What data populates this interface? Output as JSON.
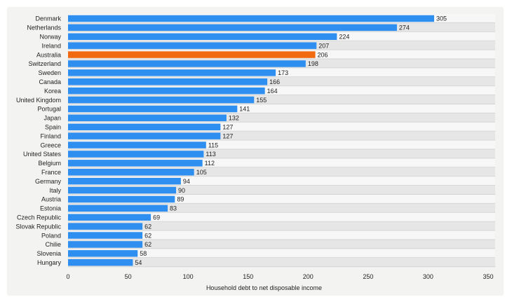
{
  "chart_data": {
    "type": "bar",
    "orientation": "horizontal",
    "categories": [
      "Denmark",
      "Netherlands",
      "Norway",
      "Ireland",
      "Australia",
      "Switzerland",
      "Sweden",
      "Canada",
      "Korea",
      "United Kingdom",
      "Portugal",
      "Japan",
      "Spain",
      "Finland",
      "Greece",
      "United States",
      "Belgium",
      "France",
      "Germany",
      "Italy",
      "Austria",
      "Estonia",
      "Czech Republic",
      "Slovak Republic",
      "Poland",
      "Chilie",
      "Slovenia",
      "Hungary"
    ],
    "values": [
      305,
      274,
      224,
      207,
      206,
      198,
      173,
      166,
      164,
      155,
      141,
      132,
      127,
      127,
      115,
      113,
      112,
      105,
      94,
      90,
      89,
      83,
      69,
      62,
      62,
      62,
      58,
      54
    ],
    "highlight": "Australia",
    "xlabel": "Household debt to net disposable income",
    "ylabel": "",
    "xlim": [
      0,
      350
    ],
    "xticks": [
      0,
      50,
      100,
      150,
      200,
      250,
      300,
      350
    ],
    "data_labels": true,
    "grid": false,
    "colors": {
      "bar": "#2f8ff0",
      "highlight": "#f26a0f",
      "band_light": "#f7f7f7",
      "band_dark": "#e6e6e6"
    }
  }
}
